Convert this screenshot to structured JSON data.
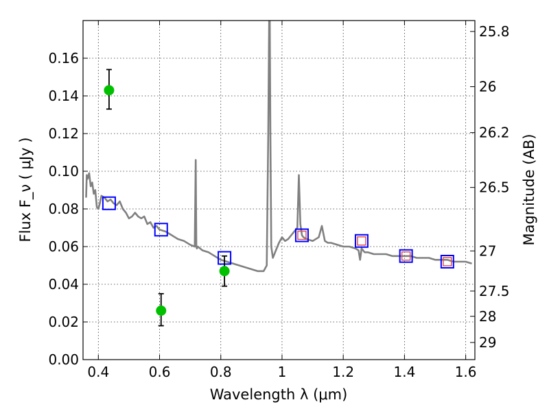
{
  "chart_data": {
    "type": "scatter",
    "title": "",
    "xlabel": "Wavelength  λ (μm)",
    "ylabel": "Flux  F_ν  ( μJy )",
    "y2label": "Magnitude (AB)",
    "xlim": [
      0.35,
      1.63
    ],
    "ylim": [
      0.0,
      0.18
    ],
    "grid": true,
    "x_ticks": [
      0.4,
      0.6,
      0.8,
      1.0,
      1.2,
      1.4,
      1.6
    ],
    "x_tick_labels": [
      "0.4",
      "0.6",
      "0.8",
      "1",
      "1.2",
      "1.4",
      "1.6"
    ],
    "y_ticks": [
      0.0,
      0.02,
      0.04,
      0.06,
      0.08,
      0.1,
      0.12,
      0.14,
      0.16
    ],
    "y_tick_labels": [
      "0.00",
      "0.02",
      "0.04",
      "0.06",
      "0.08",
      "0.10",
      "0.12",
      "0.14",
      "0.16"
    ],
    "y2_ticks": [
      {
        "label": "25.8",
        "flux": 0.1742
      },
      {
        "label": "26",
        "flux": 0.1449
      },
      {
        "label": "26.2",
        "flux": 0.1205
      },
      {
        "label": "26.5",
        "flux": 0.0914
      },
      {
        "label": "27",
        "flux": 0.0577
      },
      {
        "label": "27.5",
        "flux": 0.0364
      },
      {
        "label": "28",
        "flux": 0.023
      },
      {
        "label": "29",
        "flux": 0.0091
      }
    ],
    "series": [
      {
        "kind": "line",
        "color": "#808080",
        "x": [
          0.36,
          0.362,
          0.365,
          0.37,
          0.375,
          0.38,
          0.385,
          0.39,
          0.395,
          0.4,
          0.405,
          0.41,
          0.42,
          0.43,
          0.44,
          0.45,
          0.46,
          0.47,
          0.48,
          0.49,
          0.5,
          0.51,
          0.52,
          0.53,
          0.54,
          0.55,
          0.56,
          0.57,
          0.58,
          0.59,
          0.6,
          0.62,
          0.64,
          0.66,
          0.68,
          0.7,
          0.715,
          0.718,
          0.72,
          0.722,
          0.725,
          0.74,
          0.76,
          0.78,
          0.8,
          0.82,
          0.84,
          0.86,
          0.88,
          0.9,
          0.92,
          0.94,
          0.95,
          0.955,
          0.958,
          0.96,
          0.962,
          0.965,
          0.97,
          0.98,
          0.99,
          1.0,
          1.01,
          1.02,
          1.03,
          1.04,
          1.05,
          1.055,
          1.06,
          1.065,
          1.07,
          1.08,
          1.1,
          1.12,
          1.13,
          1.14,
          1.15,
          1.16,
          1.18,
          1.2,
          1.22,
          1.24,
          1.25,
          1.255,
          1.26,
          1.27,
          1.28,
          1.3,
          1.32,
          1.34,
          1.36,
          1.38,
          1.4,
          1.42,
          1.44,
          1.46,
          1.48,
          1.5,
          1.52,
          1.54,
          1.56,
          1.58,
          1.6,
          1.62
        ],
        "y": [
          0.086,
          0.098,
          0.096,
          0.099,
          0.092,
          0.094,
          0.088,
          0.09,
          0.081,
          0.08,
          0.083,
          0.087,
          0.086,
          0.084,
          0.085,
          0.083,
          0.082,
          0.084,
          0.08,
          0.078,
          0.075,
          0.076,
          0.078,
          0.076,
          0.075,
          0.076,
          0.072,
          0.073,
          0.07,
          0.071,
          0.069,
          0.068,
          0.066,
          0.064,
          0.063,
          0.061,
          0.06,
          0.106,
          0.06,
          0.059,
          0.06,
          0.058,
          0.057,
          0.055,
          0.053,
          0.052,
          0.051,
          0.05,
          0.049,
          0.048,
          0.047,
          0.047,
          0.05,
          0.12,
          0.18,
          0.18,
          0.12,
          0.06,
          0.054,
          0.058,
          0.062,
          0.065,
          0.063,
          0.064,
          0.066,
          0.068,
          0.07,
          0.098,
          0.072,
          0.066,
          0.065,
          0.064,
          0.063,
          0.065,
          0.071,
          0.063,
          0.062,
          0.062,
          0.061,
          0.06,
          0.06,
          0.059,
          0.058,
          0.053,
          0.059,
          0.057,
          0.057,
          0.056,
          0.056,
          0.056,
          0.055,
          0.055,
          0.055,
          0.055,
          0.054,
          0.054,
          0.054,
          0.053,
          0.053,
          0.053,
          0.052,
          0.052,
          0.052,
          0.051
        ]
      },
      {
        "kind": "square",
        "color": "#0000ff",
        "x": [
          0.435,
          0.605,
          0.812,
          1.065,
          1.26,
          1.405,
          1.54
        ],
        "y": [
          0.083,
          0.069,
          0.054,
          0.066,
          0.063,
          0.055,
          0.052
        ]
      },
      {
        "kind": "square",
        "color": "#e05050",
        "x": [
          1.065,
          1.26,
          1.405,
          1.54
        ],
        "y": [
          0.066,
          0.063,
          0.055,
          0.052
        ]
      },
      {
        "kind": "point",
        "color": "#00c000",
        "x": [
          0.435,
          0.605,
          0.812
        ],
        "y": [
          0.143,
          0.026,
          0.047
        ],
        "yerr_low": [
          0.133,
          0.018,
          0.039
        ],
        "yerr_high": [
          0.154,
          0.035,
          0.055
        ]
      }
    ]
  }
}
